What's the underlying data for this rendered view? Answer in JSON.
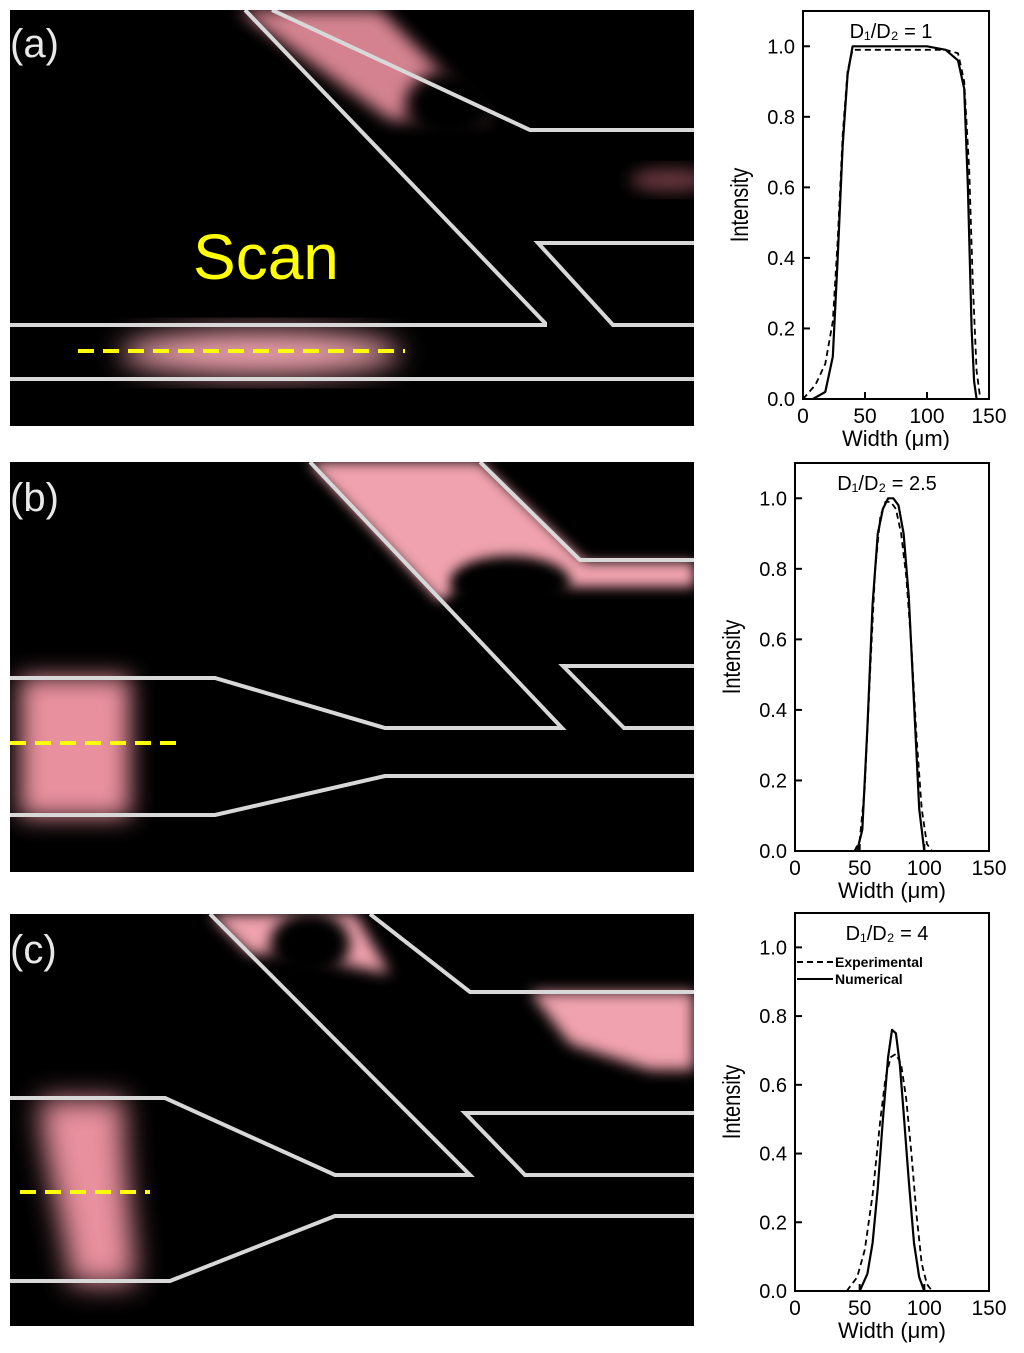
{
  "panel_labels": [
    "(a)",
    "(b)",
    "(c)"
  ],
  "scan_label": "Scan",
  "colors": {
    "fluorescence": "#f0a2ae",
    "channel_wall": "#d8d8d8",
    "scan_line": "#ffff00",
    "background": "#000000",
    "plot_ink": "#000000"
  },
  "chart_data": [
    {
      "type": "line",
      "title": "D₁/D₂ = 1",
      "xlabel": "Width (μm)",
      "ylabel": "Intensity",
      "xlim": [
        0,
        150
      ],
      "ylim": [
        0,
        1.1
      ],
      "xticks": [
        0,
        50,
        100,
        150
      ],
      "yticks": [
        0.0,
        0.2,
        0.4,
        0.6,
        0.8,
        1.0
      ],
      "grid": false,
      "series": [
        {
          "name": "",
          "style": "solid",
          "x": [
            8,
            18,
            24,
            28,
            32,
            36,
            40,
            100,
            115,
            125,
            130,
            133,
            136,
            138,
            140
          ],
          "y": [
            0,
            0.02,
            0.12,
            0.4,
            0.72,
            0.92,
            1.0,
            1.0,
            0.99,
            0.96,
            0.88,
            0.6,
            0.2,
            0.05,
            0
          ]
        },
        {
          "name": "",
          "style": "dashed",
          "x": [
            0,
            10,
            18,
            24,
            28,
            32,
            36,
            40,
            100,
            115,
            125,
            130,
            134,
            137,
            140,
            143
          ],
          "y": [
            0,
            0.04,
            0.1,
            0.22,
            0.45,
            0.75,
            0.93,
            0.99,
            0.99,
            0.99,
            0.98,
            0.9,
            0.65,
            0.32,
            0.08,
            0
          ]
        }
      ]
    },
    {
      "type": "line",
      "title": "D₁/D₂ = 2.5",
      "xlabel": "Width (μm)",
      "ylabel": "Intensity",
      "xlim": [
        0,
        150
      ],
      "ylim": [
        0,
        1.1
      ],
      "xticks": [
        0,
        50,
        100,
        150
      ],
      "yticks": [
        0.0,
        0.2,
        0.4,
        0.6,
        0.8,
        1.0
      ],
      "grid": false,
      "series": [
        {
          "name": "",
          "style": "solid",
          "x": [
            48,
            52,
            56,
            60,
            64,
            68,
            72,
            76,
            80,
            84,
            88,
            92,
            96,
            100
          ],
          "y": [
            0,
            0.06,
            0.35,
            0.7,
            0.9,
            0.97,
            1.0,
            1.0,
            0.98,
            0.9,
            0.72,
            0.42,
            0.12,
            0
          ]
        },
        {
          "name": "",
          "style": "dashed",
          "x": [
            46,
            50,
            54,
            58,
            62,
            66,
            70,
            74,
            78,
            82,
            86,
            90,
            94,
            98,
            102,
            106
          ],
          "y": [
            0,
            0.03,
            0.18,
            0.5,
            0.8,
            0.95,
            0.99,
            0.99,
            0.97,
            0.9,
            0.78,
            0.58,
            0.32,
            0.12,
            0.02,
            0
          ]
        }
      ]
    },
    {
      "type": "line",
      "title": "D₁/D₂ = 4",
      "xlabel": "Width (μm)",
      "ylabel": "Intensity",
      "xlim": [
        0,
        150
      ],
      "ylim": [
        0,
        1.1
      ],
      "xticks": [
        0,
        50,
        100,
        150
      ],
      "yticks": [
        0.0,
        0.2,
        0.4,
        0.6,
        0.8,
        1.0
      ],
      "grid": false,
      "legend": "top",
      "series": [
        {
          "name": "Experimental",
          "style": "dashed",
          "x": [
            40,
            48,
            54,
            60,
            66,
            70,
            74,
            78,
            82,
            86,
            90,
            94,
            98,
            102,
            106
          ],
          "y": [
            0,
            0.04,
            0.12,
            0.28,
            0.5,
            0.62,
            0.68,
            0.69,
            0.66,
            0.56,
            0.4,
            0.22,
            0.08,
            0.02,
            0
          ]
        },
        {
          "name": "Numerical",
          "style": "solid",
          "x": [
            50,
            56,
            60,
            64,
            68,
            72,
            75,
            78,
            81,
            84,
            88,
            92,
            96,
            100
          ],
          "y": [
            0,
            0.05,
            0.14,
            0.3,
            0.5,
            0.68,
            0.76,
            0.75,
            0.66,
            0.52,
            0.32,
            0.14,
            0.04,
            0
          ]
        }
      ]
    }
  ]
}
